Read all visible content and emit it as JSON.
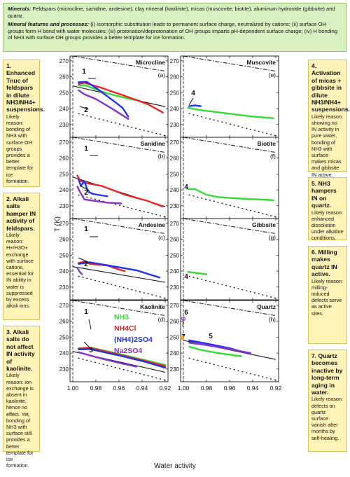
{
  "header": {
    "minerals_label": "Minerals:",
    "minerals_text": "Feldspars (microcline, sanidine, andesine), clay mineral (kaolinite), micas (muscovite, biotite), aluminum hydroxide (gibbsite) and quartz.",
    "features_label": "Mineral features and processes:",
    "features_text": "(i) Isomorphic substitution leads to permanent surface charge, neutralized by cations; (ii) surface OH groups form H bond with water molecules; (iii) protonation/deprotonation of OH groups imparts pH-dependent surface charge; (iv) H bonding of NH3 with surface OH groups provides a better template for ice formation."
  },
  "left_notes": [
    {
      "title": "1. Enhanced Tnuc of feldspars in dilute NH3/NH4+ suspensions.",
      "body": "Likely reason: bonding of NH3 with surface OH groups provides a better template for ice formation."
    },
    {
      "title": "2. Alkali salts hamper IN activity of feldspars.",
      "body": "Likely reason: H+/H3O+ exchange with surface cations, essential for IN ability in water is suppressed by excess alkali ions."
    },
    {
      "title": "3. Alkali salts do not affect IN activity of kaolinite.",
      "body": "Likely reason: ion exchange is absent in kaolinite, hence no effect. Yet, bonding of NH3 with surface still provides a better template for ice formation."
    }
  ],
  "right_notes": [
    {
      "title": "4. Activation of micas + gibbsite in dilute NH3/NH4+ suspensions.",
      "body": "Likely reason: showing no IN activity in pure water, bonding of NH3 with surface makes micas and gibbsite IN active."
    },
    {
      "title": "5. NH3 hampers IN on quartz.",
      "body": "Likely reason: enhanced dissolution under alkaline conditions."
    },
    {
      "title": "6. Milling makes quartz IN active.",
      "body": "Likely reason: milling-induced defects serve as active sites."
    },
    {
      "title": "7. Quartz becomes inactive by long-term aging in water.",
      "body": "Likely reason: defects on quartz surface vanish after months by self-healing."
    }
  ],
  "colors": {
    "NH3": "#33dd33",
    "NH4Cl": "#ee2222",
    "NH42SO4": "#2233ee",
    "Na2SO4": "#8833cc",
    "quartz_marker": "#f0a030",
    "panel_bg": "#ffffff"
  },
  "chart_data": {
    "type": "line",
    "ylabel": "T (K)",
    "xlabel": "Water activity",
    "xlim": [
      1.0,
      0.92
    ],
    "ylim": [
      222,
      273
    ],
    "xticks": [
      "1.00",
      "0.98",
      "0.96",
      "0.94",
      "0.92"
    ],
    "yticks": [
      "230",
      "240",
      "250",
      "260",
      "270"
    ],
    "legend": [
      "NH3",
      "NH4Cl",
      "(NH4)2SO4",
      "Na2SO4"
    ],
    "reference_lines": {
      "dashdot": [
        [
          1.0,
          273.0
        ],
        [
          0.92,
          263.5
        ]
      ],
      "dotted": [
        [
          0.995,
          236.8
        ],
        [
          0.92,
          223.0
        ]
      ]
    },
    "panels": [
      {
        "id": "a",
        "name": "Microcline",
        "solid": [
          [
            1.0,
            254.2
          ],
          [
            0.92,
            241.2
          ]
        ],
        "annotations": [
          "1",
          "2"
        ],
        "series": [
          {
            "name": "NH3",
            "points": [
              [
                0.995,
                254.5
              ],
              [
                0.99,
                254.8
              ],
              [
                0.97,
                249.5
              ],
              [
                0.95,
                246.0
              ],
              [
                0.942,
                245.0
              ]
            ]
          },
          {
            "name": "NH4Cl",
            "points": [
              [
                0.995,
                255.5
              ],
              [
                0.99,
                256.2
              ],
              [
                0.975,
                253.0
              ],
              [
                0.955,
                248.0
              ],
              [
                0.935,
                242.8
              ],
              [
                0.922,
                237.5
              ]
            ]
          },
          {
            "name": "NH42SO4",
            "points": [
              [
                0.995,
                256.5
              ],
              [
                0.988,
                256.8
              ],
              [
                0.98,
                253.0
              ],
              [
                0.965,
                245.0
              ],
              [
                0.957,
                240.5
              ],
              [
                0.952,
                235.0
              ]
            ]
          },
          {
            "name": "Na2SO4",
            "points": [
              [
                0.995,
                251.5
              ],
              [
                0.99,
                249.0
              ],
              [
                0.98,
                246.0
              ],
              [
                0.965,
                239.5
              ],
              [
                0.952,
                233.5
              ]
            ]
          }
        ]
      },
      {
        "id": "b",
        "name": "Sanidine",
        "solid": [
          [
            1.0,
            248.0
          ],
          [
            0.92,
            229.5
          ]
        ],
        "annotations": [
          "1",
          "2"
        ],
        "series": [
          {
            "name": "NH4Cl",
            "points": [
              [
                0.996,
                249.0
              ],
              [
                0.994,
                246.0
              ],
              [
                0.99,
                244.5
              ],
              [
                0.975,
                242.5
              ],
              [
                0.955,
                237.0
              ],
              [
                0.935,
                233.0
              ],
              [
                0.922,
                229.5
              ]
            ]
          },
          {
            "name": "NH42SO4",
            "points": [
              [
                0.995,
                246.5
              ],
              [
                0.993,
                242.5
              ],
              [
                0.99,
                245.5
              ],
              [
                0.987,
                239.0
              ],
              [
                0.983,
                237.5
              ],
              [
                0.975,
                236.5
              ],
              [
                0.97,
                236.0
              ]
            ]
          },
          {
            "name": "Na2SO4",
            "points": [
              [
                0.996,
                242.0
              ],
              [
                0.994,
                239.0
              ],
              [
                0.99,
                234.0
              ],
              [
                0.98,
                233.0
              ],
              [
                0.97,
                232.0
              ],
              [
                0.958,
                231.5
              ]
            ]
          }
        ]
      },
      {
        "id": "c",
        "name": "Andesine",
        "solid": [
          [
            1.0,
            242.8
          ],
          [
            0.92,
            233.0
          ]
        ],
        "annotations": [
          "1",
          "2"
        ],
        "series": [
          {
            "name": "NH4Cl",
            "points": [
              [
                0.995,
                245.0
              ],
              [
                0.99,
                246.0
              ],
              [
                0.985,
                244.5
              ],
              [
                0.97,
                243.5
              ],
              [
                0.96,
                241.0
              ],
              [
                0.955,
                240.0
              ]
            ]
          },
          {
            "name": "NH42SO4",
            "points": [
              [
                0.995,
                244.5
              ],
              [
                0.985,
                245.5
              ],
              [
                0.965,
                243.0
              ],
              [
                0.945,
                240.5
              ],
              [
                0.925,
                236.0
              ]
            ]
          },
          {
            "name": "Na2SO4",
            "points": [
              [
                0.996,
                242.0
              ],
              [
                0.994,
                239.5
              ],
              [
                0.992,
                238.0
              ]
            ]
          }
        ]
      },
      {
        "id": "d",
        "name": "Kaolinite",
        "solid": [
          [
            1.0,
            241.0
          ],
          [
            0.92,
            228.0
          ]
        ],
        "annotations": [
          "1",
          "3"
        ],
        "series": [
          {
            "name": "NH3",
            "points": [
              [
                0.995,
                243.0
              ],
              [
                0.985,
                243.5
              ],
              [
                0.96,
                239.5
              ],
              [
                0.94,
                236.0
              ],
              [
                0.92,
                232.5
              ]
            ]
          },
          {
            "name": "NH4Cl",
            "points": [
              [
                0.995,
                242.8
              ],
              [
                0.985,
                243.2
              ],
              [
                0.96,
                239.0
              ],
              [
                0.94,
                235.5
              ],
              [
                0.92,
                231.8
              ]
            ]
          },
          {
            "name": "NH42SO4",
            "points": [
              [
                0.995,
                242.3
              ],
              [
                0.985,
                242.5
              ],
              [
                0.96,
                238.5
              ],
              [
                0.94,
                235.0
              ],
              [
                0.92,
                230.8
              ]
            ]
          },
          {
            "name": "Na2SO4",
            "points": [
              [
                0.995,
                240.5
              ],
              [
                0.99,
                239.5
              ],
              [
                0.975,
                236.5
              ],
              [
                0.958,
                233.5
              ],
              [
                0.945,
                231.5
              ]
            ]
          }
        ]
      },
      {
        "id": "e",
        "name": "Muscovite",
        "solid": null,
        "annotations": [
          "4"
        ],
        "series": [
          {
            "name": "NH3",
            "points": [
              [
                0.996,
                240.5
              ],
              [
                0.985,
                239.0
              ],
              [
                0.96,
                236.8
              ],
              [
                0.94,
                235.0
              ],
              [
                0.922,
                234.0
              ]
            ]
          },
          {
            "name": "NH42SO4",
            "points": [
              [
                0.995,
                241.5
              ],
              [
                0.99,
                242.0
              ],
              [
                0.985,
                241.5
              ]
            ]
          }
        ]
      },
      {
        "id": "f",
        "name": "Biotite",
        "solid": null,
        "annotations": [
          "4"
        ],
        "series": [
          {
            "name": "NH3",
            "points": [
              [
                0.996,
                240.5
              ],
              [
                0.99,
                240.5
              ],
              [
                0.98,
                237.0
              ],
              [
                0.97,
                235.5
              ],
              [
                0.95,
                234.5
              ],
              [
                0.922,
                233.5
              ]
            ]
          }
        ]
      },
      {
        "id": "g",
        "name": "Gibbsite",
        "solid": null,
        "annotations": [
          "4"
        ],
        "series": [
          {
            "name": "NH3",
            "points": [
              [
                0.996,
                239.5
              ],
              [
                0.985,
                238.5
              ],
              [
                0.98,
                238.0
              ]
            ]
          }
        ]
      },
      {
        "id": "h",
        "name": "Quartz",
        "solid": [
          [
            1.0,
            248.0
          ],
          [
            0.92,
            236.0
          ]
        ],
        "annotations": [
          "6",
          "5",
          "7"
        ],
        "series": [
          {
            "name": "NH3",
            "points": [
              [
                0.995,
                244.0
              ],
              [
                0.985,
                242.0
              ],
              [
                0.97,
                240.0
              ],
              [
                0.955,
                238.5
              ],
              [
                0.95,
                238.0
              ]
            ]
          },
          {
            "name": "NH42SO4",
            "points": [
              [
                0.995,
                248.0
              ],
              [
                0.98,
                246.0
              ],
              [
                0.96,
                243.0
              ],
              [
                0.95,
                241.0
              ],
              [
                0.942,
                239.5
              ]
            ]
          },
          {
            "name": "Na2SO4",
            "points": [
              [
                0.995,
                246.5
              ],
              [
                0.98,
                245.0
              ],
              [
                0.96,
                242.5
              ],
              [
                0.942,
                240.0
              ]
            ]
          }
        ]
      }
    ]
  }
}
